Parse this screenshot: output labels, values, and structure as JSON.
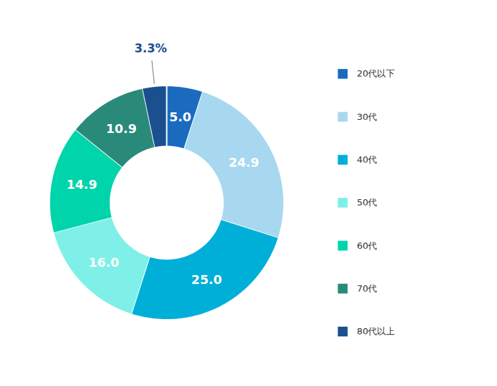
{
  "chart_data": {
    "type": "pie",
    "categories": [
      "20代以下",
      "30代",
      "40代",
      "50代",
      "60代",
      "70代",
      "80代以上"
    ],
    "values": [
      5.0,
      24.9,
      25.0,
      16.0,
      14.9,
      10.9,
      3.3
    ],
    "value_labels": [
      "5.0",
      "24.9",
      "25.0",
      "16.0",
      "14.9",
      "10.9",
      "3.3%"
    ],
    "colors": [
      "#1a6bbf",
      "#a8d8f0",
      "#00afd8",
      "#7ef0e8",
      "#00d4aa",
      "#2a8a7a",
      "#1a5090"
    ],
    "data_labels": true,
    "legend": "right"
  }
}
